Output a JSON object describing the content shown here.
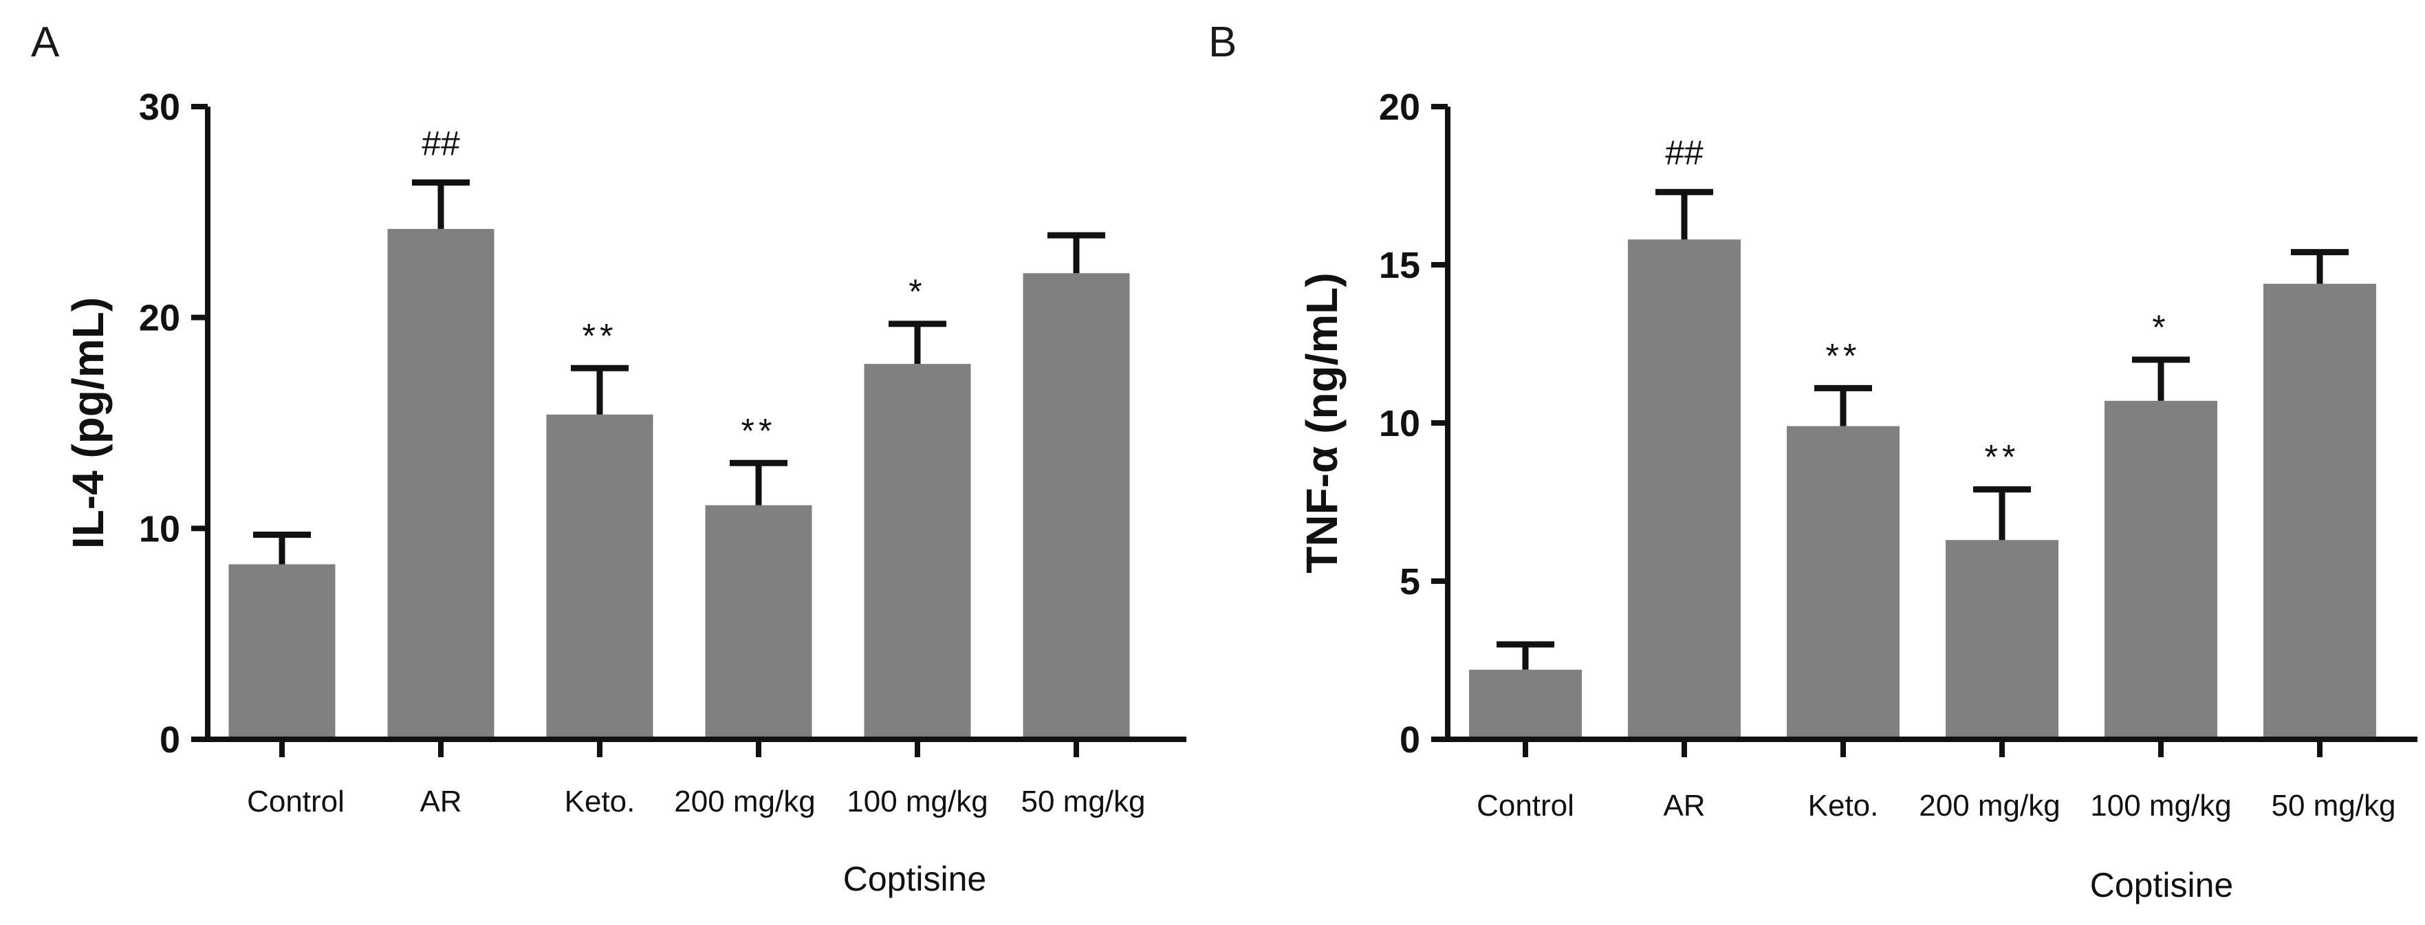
{
  "chart_data": [
    {
      "type": "bar",
      "panel": "A",
      "ylabel": "IL-4 (pg/mL)",
      "ylim": [
        0,
        30
      ],
      "yticks": [
        0,
        10,
        20,
        30
      ],
      "categories": [
        "Control",
        "AR",
        "Keto.",
        "200 mg/kg",
        "100 mg/kg",
        "50 mg/kg"
      ],
      "values": [
        8.3,
        24.2,
        15.4,
        11.1,
        17.8,
        22.1
      ],
      "errors": [
        1.4,
        2.2,
        2.2,
        2.0,
        1.9,
        1.8
      ],
      "significance": [
        "",
        "##",
        "**",
        "**",
        "*",
        ""
      ],
      "group_label": "Coptisine"
    },
    {
      "type": "bar",
      "panel": "B",
      "ylabel": "TNF-α (ng/mL)",
      "ylim": [
        0,
        20
      ],
      "yticks": [
        0,
        5,
        10,
        15,
        20
      ],
      "categories": [
        "Control",
        "AR",
        "Keto.",
        "200 mg/kg",
        "100 mg/kg",
        "50 mg/kg"
      ],
      "values": [
        2.2,
        15.8,
        9.9,
        6.3,
        10.7,
        14.4
      ],
      "errors": [
        0.8,
        1.5,
        1.2,
        1.6,
        1.3,
        1.0
      ],
      "significance": [
        "",
        "##",
        "**",
        "**",
        "*",
        ""
      ],
      "group_label": "Coptisine"
    }
  ],
  "colors": {
    "bar": "#808080",
    "axis": "#111111"
  }
}
